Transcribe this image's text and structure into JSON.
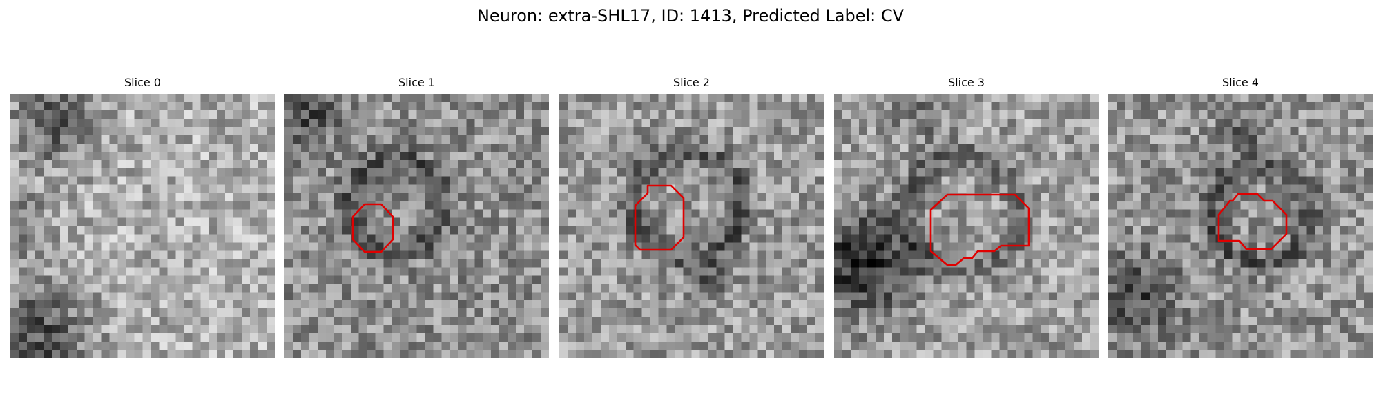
{
  "figure": {
    "title": "Neuron: extra-SHL17, ID: 1413, Predicted Label: CV",
    "contour_color": "#e00000"
  },
  "slices": [
    {
      "label": "Slice 0",
      "has_contour": false
    },
    {
      "label": "Slice 1",
      "has_contour": true
    },
    {
      "label": "Slice 2",
      "has_contour": true
    },
    {
      "label": "Slice 3",
      "has_contour": true
    },
    {
      "label": "Slice 4",
      "has_contour": true
    }
  ]
}
